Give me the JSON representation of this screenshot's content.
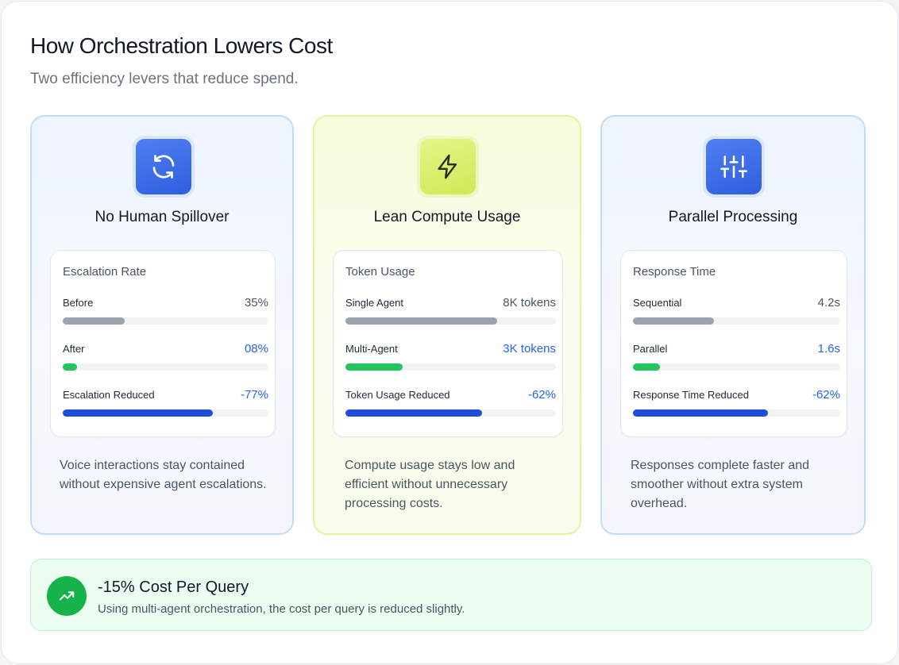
{
  "header": {
    "title": "How Orchestration Lowers Cost",
    "subtitle": "Two efficiency levers that reduce spend."
  },
  "cards": [
    {
      "title": "No Human Spillover",
      "icon": "refresh-icon",
      "accent": "#2f5ee0",
      "metric_heading": "Escalation Rate",
      "rows": [
        {
          "label": "Before",
          "value": "35%",
          "level": 0.3,
          "bar_color": "gray"
        },
        {
          "label": "After",
          "value": "08%",
          "level": 0.07,
          "bar_color": "green"
        },
        {
          "label": "Escalation Reduced",
          "value": "-77%",
          "level": 0.73,
          "bar_color": "blue"
        }
      ],
      "description": "Voice interactions stay contained without expensive agent escalations."
    },
    {
      "title": "Lean Compute Usage",
      "icon": "lightning-icon",
      "accent": "#cfe954",
      "metric_heading": "Token Usage",
      "rows": [
        {
          "label": "Single Agent",
          "value": "8K tokens",
          "level": 0.72,
          "bar_color": "gray"
        },
        {
          "label": "Multi-Agent",
          "value": "3K tokens",
          "level": 0.27,
          "bar_color": "green"
        },
        {
          "label": "Token Usage Reduced",
          "value": "-62%",
          "level": 0.65,
          "bar_color": "blue"
        }
      ],
      "description": "Compute usage stays low and efficient without unnecessary processing costs."
    },
    {
      "title": "Parallel Processing",
      "icon": "sliders-icon",
      "accent": "#2f5ee0",
      "metric_heading": "Response Time",
      "rows": [
        {
          "label": "Sequential",
          "value": "4.2s",
          "level": 0.39,
          "bar_color": "gray"
        },
        {
          "label": "Parallel",
          "value": "1.6s",
          "level": 0.13,
          "bar_color": "green"
        },
        {
          "label": "Response Time Reduced",
          "value": "-62%",
          "level": 0.65,
          "bar_color": "blue"
        }
      ],
      "description": "Responses complete faster and smoother without extra system overhead."
    }
  ],
  "banner": {
    "icon": "trending-up-icon",
    "title": "-15% Cost Per Query",
    "text": "Using multi-agent orchestration, the cost per query is reduced slightly."
  },
  "colors": {
    "gray_bar": "#9ca3af",
    "green_bar": "#22c55e",
    "blue_bar": "#1d4ed8",
    "value_blue": "#2563eb"
  }
}
